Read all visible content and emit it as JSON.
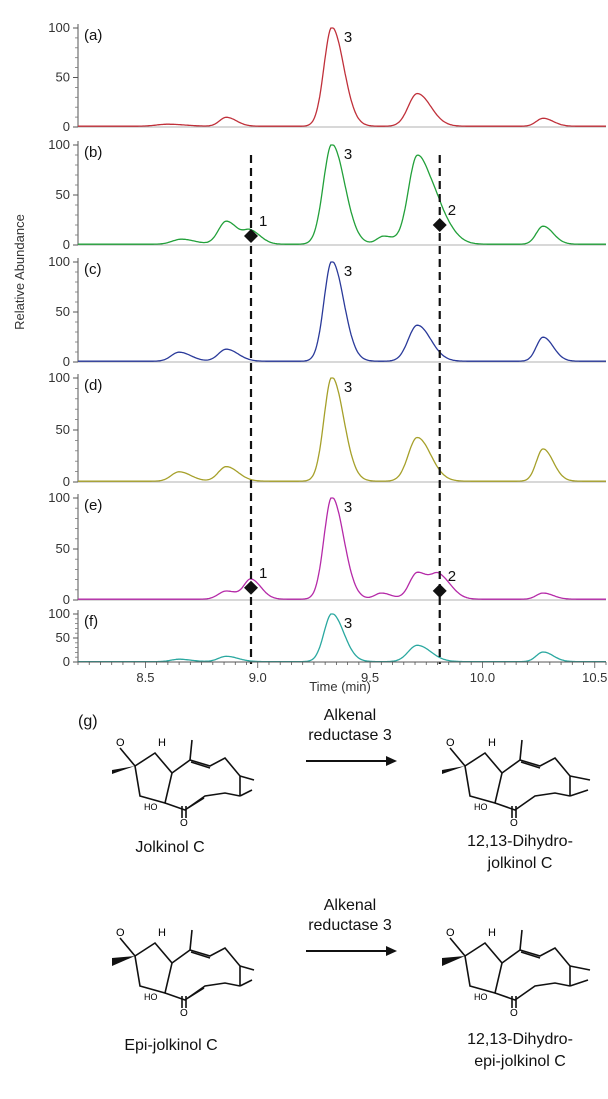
{
  "chart_data": {
    "type": "line",
    "title": "",
    "xlabel": "Time (min)",
    "ylabel": "Relative Abundance",
    "xlim": [
      8.2,
      10.55
    ],
    "ylim": [
      0,
      100
    ],
    "x_ticks": [
      "8.5",
      "9.0",
      "9.5",
      "10.0",
      "10.5"
    ],
    "y_ticks": [
      "0",
      "50",
      "100"
    ],
    "markers_x": [
      8.97,
      9.81
    ],
    "panels": [
      {
        "label": "(a)",
        "color": "#c0303a",
        "peaks": [
          {
            "x": 8.86,
            "y": 9,
            "w": 0.03
          },
          {
            "x": 9.33,
            "y": 100,
            "w": 0.035
          },
          {
            "x": 9.71,
            "y": 33,
            "w": 0.04
          },
          {
            "x": 10.27,
            "y": 8,
            "w": 0.03
          },
          {
            "x": 8.6,
            "y": 2,
            "w": 0.05
          }
        ],
        "annotations": [
          {
            "text": "3",
            "x": 9.33
          }
        ]
      },
      {
        "label": "(b)",
        "color": "#22a03a",
        "peaks": [
          {
            "x": 8.66,
            "y": 5,
            "w": 0.04
          },
          {
            "x": 8.86,
            "y": 23,
            "w": 0.035
          },
          {
            "x": 8.97,
            "y": 12,
            "w": 0.03
          },
          {
            "x": 9.33,
            "y": 100,
            "w": 0.038
          },
          {
            "x": 9.56,
            "y": 8,
            "w": 0.03
          },
          {
            "x": 9.71,
            "y": 88,
            "w": 0.04
          },
          {
            "x": 9.81,
            "y": 22,
            "w": 0.04
          },
          {
            "x": 10.27,
            "y": 18,
            "w": 0.03
          }
        ],
        "annotations": [
          {
            "text": "3",
            "x": 9.33
          },
          {
            "text": "1",
            "x": 8.97,
            "marker_y": 9
          },
          {
            "text": "2",
            "x": 9.81,
            "marker_y": 20
          }
        ]
      },
      {
        "label": "(c)",
        "color": "#2a3a9a",
        "peaks": [
          {
            "x": 8.65,
            "y": 9,
            "w": 0.035
          },
          {
            "x": 8.86,
            "y": 12,
            "w": 0.035
          },
          {
            "x": 9.33,
            "y": 100,
            "w": 0.035
          },
          {
            "x": 9.71,
            "y": 36,
            "w": 0.04
          },
          {
            "x": 10.27,
            "y": 24,
            "w": 0.03
          }
        ],
        "annotations": [
          {
            "text": "3",
            "x": 9.33
          }
        ]
      },
      {
        "label": "(d)",
        "color": "#a6a02a",
        "peaks": [
          {
            "x": 8.65,
            "y": 9,
            "w": 0.035
          },
          {
            "x": 8.86,
            "y": 14,
            "w": 0.035
          },
          {
            "x": 9.33,
            "y": 100,
            "w": 0.035
          },
          {
            "x": 9.71,
            "y": 42,
            "w": 0.04
          },
          {
            "x": 10.27,
            "y": 31,
            "w": 0.03
          }
        ],
        "annotations": [
          {
            "text": "3",
            "x": 9.33
          }
        ]
      },
      {
        "label": "(e)",
        "color": "#b52aa8",
        "peaks": [
          {
            "x": 8.86,
            "y": 8,
            "w": 0.035
          },
          {
            "x": 8.97,
            "y": 19,
            "w": 0.03
          },
          {
            "x": 9.33,
            "y": 100,
            "w": 0.035
          },
          {
            "x": 9.55,
            "y": 6,
            "w": 0.03
          },
          {
            "x": 9.71,
            "y": 26,
            "w": 0.035
          },
          {
            "x": 9.81,
            "y": 21,
            "w": 0.035
          },
          {
            "x": 10.27,
            "y": 6,
            "w": 0.03
          }
        ],
        "annotations": [
          {
            "text": "3",
            "x": 9.33
          },
          {
            "text": "1",
            "x": 8.97,
            "marker_y": 12
          },
          {
            "text": "2",
            "x": 9.81,
            "marker_y": 9
          }
        ]
      },
      {
        "label": "(f)",
        "color": "#2aa8a0",
        "peaks": [
          {
            "x": 8.65,
            "y": 5,
            "w": 0.035
          },
          {
            "x": 8.86,
            "y": 11,
            "w": 0.035
          },
          {
            "x": 9.33,
            "y": 100,
            "w": 0.035
          },
          {
            "x": 9.71,
            "y": 34,
            "w": 0.04
          },
          {
            "x": 10.27,
            "y": 20,
            "w": 0.03
          }
        ],
        "annotations": [
          {
            "text": "3",
            "x": 9.33
          }
        ]
      }
    ]
  },
  "scheme": {
    "label": "(g)",
    "reactions": [
      {
        "substrate": "Jolkinol C",
        "enzyme_line1": "Alkenal",
        "enzyme_line2": "reductase 3",
        "product_line1": "12,13-Dihydro-",
        "product_line2": "jolkinol C"
      },
      {
        "substrate": "Epi-jolkinol C",
        "enzyme_line1": "Alkenal",
        "enzyme_line2": "reductase 3",
        "product_line1": "12,13-Dihydro-",
        "product_line2": "epi-jolkinol C"
      }
    ],
    "atom_labels": {
      "oxygen": "O",
      "hydrogen": "H",
      "hydroxyl": "HO"
    }
  }
}
